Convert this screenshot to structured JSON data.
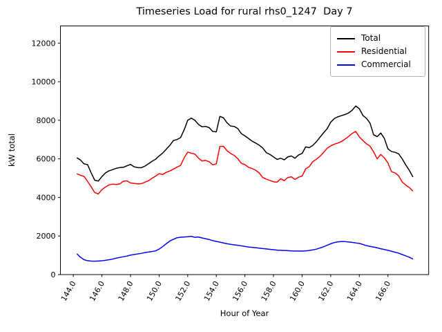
{
  "chart_data": {
    "type": "line",
    "title": "Timeseries Load for rural rhs0_1247  Day 7",
    "xlabel": "Hour of Year",
    "ylabel": "kW total",
    "xlim": [
      143.1,
      168.85
    ],
    "ylim": [
      0,
      12890
    ],
    "grid": false,
    "legend_position": "upper right",
    "x_ticks": {
      "values": [
        144,
        146,
        148,
        150,
        152,
        154,
        156,
        158,
        160,
        162,
        164,
        166
      ],
      "labels": [
        "144.0",
        "146.0",
        "148.0",
        "150.0",
        "152.0",
        "154.0",
        "156.0",
        "158.0",
        "160.0",
        "162.0",
        "164.0",
        "166.0"
      ],
      "rotation_deg": -60
    },
    "y_ticks": {
      "values": [
        0,
        2000,
        4000,
        6000,
        8000,
        10000,
        12000
      ],
      "labels": [
        "0",
        "2000",
        "4000",
        "6000",
        "8000",
        "10000",
        "12000"
      ]
    },
    "x": [
      144.25,
      144.5,
      144.75,
      145.0,
      145.25,
      145.5,
      145.75,
      146.0,
      146.25,
      146.5,
      146.75,
      147.0,
      147.25,
      147.5,
      147.75,
      148.0,
      148.25,
      148.5,
      148.75,
      149.0,
      149.25,
      149.5,
      149.75,
      150.0,
      150.25,
      150.5,
      150.75,
      151.0,
      151.25,
      151.5,
      151.75,
      152.0,
      152.25,
      152.5,
      152.75,
      153.0,
      153.25,
      153.5,
      153.75,
      154.0,
      154.25,
      154.5,
      154.75,
      155.0,
      155.25,
      155.5,
      155.75,
      156.0,
      156.25,
      156.5,
      156.75,
      157.0,
      157.25,
      157.5,
      157.75,
      158.0,
      158.25,
      158.5,
      158.75,
      159.0,
      159.25,
      159.5,
      159.75,
      160.0,
      160.25,
      160.5,
      160.75,
      161.0,
      161.25,
      161.5,
      161.75,
      162.0,
      162.25,
      162.5,
      162.75,
      163.0,
      163.25,
      163.5,
      163.75,
      164.0,
      164.25,
      164.5,
      164.75,
      165.0,
      165.25,
      165.5,
      165.75,
      166.0,
      166.25,
      166.5,
      166.75,
      167.0,
      167.25,
      167.5,
      167.75
    ],
    "series": [
      {
        "name": "Total",
        "color": "#000000",
        "values": [
          6060,
          5940,
          5740,
          5700,
          5270,
          4890,
          4850,
          5080,
          5270,
          5380,
          5440,
          5510,
          5550,
          5560,
          5640,
          5710,
          5590,
          5550,
          5540,
          5620,
          5740,
          5870,
          5980,
          6150,
          6300,
          6500,
          6700,
          6950,
          7000,
          7100,
          7500,
          8000,
          8110,
          8000,
          7790,
          7660,
          7680,
          7620,
          7420,
          7400,
          8200,
          8130,
          7870,
          7700,
          7680,
          7570,
          7310,
          7190,
          7060,
          6920,
          6820,
          6710,
          6560,
          6320,
          6230,
          6100,
          5970,
          6030,
          5950,
          6100,
          6150,
          6030,
          6200,
          6280,
          6620,
          6580,
          6700,
          6890,
          7120,
          7350,
          7560,
          7900,
          8090,
          8180,
          8240,
          8300,
          8380,
          8520,
          8740,
          8600,
          8250,
          8100,
          7850,
          7250,
          7150,
          7340,
          7060,
          6520,
          6380,
          6340,
          6260,
          6000,
          5680,
          5400,
          5060
        ]
      },
      {
        "name": "Residential",
        "color": "#ff0000",
        "values": [
          5230,
          5150,
          5090,
          4830,
          4550,
          4250,
          4180,
          4400,
          4540,
          4650,
          4690,
          4670,
          4700,
          4840,
          4860,
          4750,
          4730,
          4700,
          4710,
          4790,
          4860,
          4990,
          5100,
          5230,
          5190,
          5300,
          5370,
          5470,
          5570,
          5660,
          6050,
          6350,
          6290,
          6250,
          6040,
          5890,
          5920,
          5850,
          5690,
          5740,
          6640,
          6650,
          6420,
          6280,
          6180,
          6010,
          5770,
          5700,
          5560,
          5500,
          5410,
          5270,
          5030,
          4950,
          4880,
          4810,
          4790,
          4970,
          4870,
          5030,
          5070,
          4930,
          5050,
          5110,
          5480,
          5600,
          5860,
          5980,
          6130,
          6330,
          6550,
          6670,
          6760,
          6820,
          6900,
          7020,
          7160,
          7320,
          7420,
          7140,
          6950,
          6780,
          6660,
          6360,
          6000,
          6230,
          6050,
          5790,
          5340,
          5270,
          5120,
          4800,
          4640,
          4510,
          4330
        ]
      },
      {
        "name": "Commercial",
        "color": "#0000ff",
        "values": [
          1080,
          900,
          770,
          720,
          700,
          695,
          705,
          715,
          740,
          770,
          805,
          850,
          890,
          925,
          960,
          1010,
          1040,
          1070,
          1100,
          1140,
          1170,
          1195,
          1230,
          1320,
          1450,
          1600,
          1740,
          1830,
          1910,
          1935,
          1950,
          1965,
          1985,
          1930,
          1950,
          1900,
          1860,
          1820,
          1760,
          1720,
          1680,
          1640,
          1600,
          1570,
          1540,
          1520,
          1490,
          1460,
          1430,
          1410,
          1395,
          1370,
          1350,
          1330,
          1310,
          1290,
          1270,
          1260,
          1250,
          1240,
          1230,
          1225,
          1220,
          1220,
          1230,
          1250,
          1280,
          1320,
          1380,
          1440,
          1520,
          1600,
          1660,
          1700,
          1710,
          1710,
          1690,
          1670,
          1640,
          1620,
          1560,
          1500,
          1460,
          1430,
          1390,
          1340,
          1300,
          1260,
          1210,
          1160,
          1110,
          1040,
          970,
          900,
          810
        ]
      }
    ]
  }
}
